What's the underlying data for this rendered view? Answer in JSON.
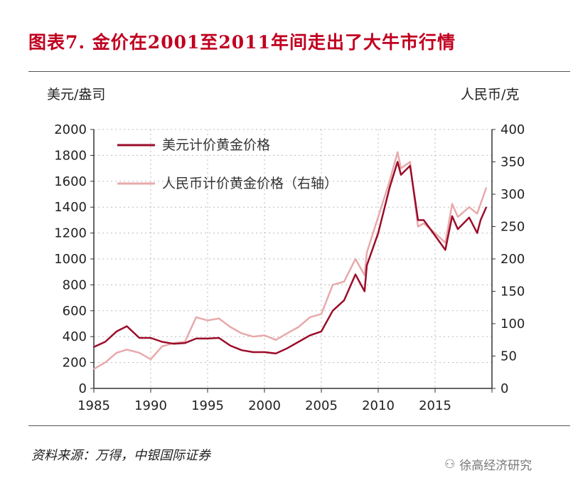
{
  "title": "图表7. 金价在2001至2011年间走出了大牛市行情",
  "left_unit": "美元/盎司",
  "right_unit": "人民币/克",
  "source": "资料来源：万得，中银国际证券",
  "watermark": "徐高经济研究",
  "colors": {
    "usd": "#9b0d2a",
    "cny": "#e8a9ab",
    "title": "#c00020"
  },
  "chart_data": {
    "type": "line",
    "title": "金价在2001至2011年间走出了大牛市行情",
    "xlabel": "",
    "ylabel": "美元/盎司",
    "y2label": "人民币/克",
    "xlim": [
      1985,
      2020
    ],
    "ylim": [
      0,
      2000
    ],
    "y2lim": [
      0,
      400
    ],
    "xticks": [
      1985,
      1990,
      1995,
      2000,
      2005,
      2010,
      2015
    ],
    "yticks": [
      0,
      200,
      400,
      600,
      800,
      1000,
      1200,
      1400,
      1600,
      1800,
      2000
    ],
    "y2ticks": [
      0,
      50,
      100,
      150,
      200,
      250,
      300,
      350,
      400
    ],
    "grid": true,
    "legend_position": "top-left",
    "series": [
      {
        "name": "美元计价黄金价格",
        "axis": "left",
        "x": [
          1985,
          1986,
          1987,
          1987.9,
          1989,
          1990,
          1991,
          1992,
          1993,
          1994,
          1995,
          1996,
          1997,
          1998,
          1999,
          2000,
          2001,
          2002,
          2003,
          2004,
          2005,
          2006,
          2007,
          2008,
          2008.8,
          2009,
          2010,
          2011,
          2011.7,
          2012,
          2012.8,
          2013,
          2013.5,
          2014,
          2015,
          2015.9,
          2016.5,
          2017,
          2018,
          2018.7,
          2019,
          2019.5
        ],
        "values": [
          320,
          360,
          440,
          480,
          390,
          390,
          360,
          345,
          350,
          385,
          385,
          390,
          330,
          295,
          280,
          280,
          270,
          310,
          360,
          410,
          440,
          600,
          680,
          880,
          750,
          950,
          1200,
          1550,
          1750,
          1650,
          1720,
          1600,
          1300,
          1300,
          1180,
          1070,
          1330,
          1230,
          1320,
          1200,
          1300,
          1400
        ]
      },
      {
        "name": "人民币计价黄金价格（右轴）",
        "axis": "right",
        "x": [
          1985,
          1986,
          1987,
          1987.9,
          1989,
          1990,
          1991,
          1992,
          1993,
          1994,
          1995,
          1996,
          1997,
          1998,
          1999,
          2000,
          2001,
          2002,
          2003,
          2004,
          2005,
          2006,
          2007,
          2008,
          2008.8,
          2009,
          2010,
          2011,
          2011.7,
          2012,
          2012.8,
          2013,
          2013.5,
          2014,
          2015,
          2015.9,
          2016.5,
          2017,
          2018,
          2018.7,
          2019,
          2019.5
        ],
        "values": [
          30,
          40,
          55,
          60,
          55,
          45,
          65,
          70,
          72,
          110,
          105,
          108,
          95,
          85,
          80,
          82,
          75,
          85,
          95,
          110,
          115,
          160,
          165,
          200,
          175,
          210,
          265,
          320,
          365,
          340,
          350,
          320,
          250,
          255,
          240,
          225,
          285,
          265,
          280,
          270,
          285,
          310
        ]
      }
    ]
  }
}
